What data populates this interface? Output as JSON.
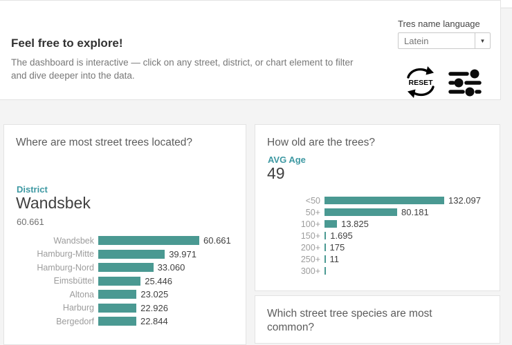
{
  "colors": {
    "bar_teal": "#4a9992",
    "teal_text": "#3d98a2",
    "background": "#f4f4f4",
    "panel_border": "#e3e3e3"
  },
  "header": {
    "title": "Feel free to explore!",
    "subtitle_line1": "The dashboard is interactive — click on any street, district, or chart element to filter",
    "subtitle_line2": "and dive deeper into the data.",
    "language_label": "Tres name language",
    "language_value": "Latein",
    "reset_label": "RESET"
  },
  "district_panel": {
    "title": "Where are most street trees located?",
    "kpi_label": "District",
    "kpi_value": "Wandsbek",
    "kpi_subvalue": "60.661"
  },
  "age_panel": {
    "title": "How old are the trees?",
    "kpi_label": "AVG Age",
    "kpi_value": "49"
  },
  "species_panel": {
    "title": "Which street tree species are most common?"
  },
  "chart_data": [
    {
      "type": "bar",
      "orientation": "horizontal",
      "title": "Where are most street trees located?",
      "categories": [
        "Wandsbek",
        "Hamburg-Mitte",
        "Hamburg-Nord",
        "Eimsbüttel",
        "Altona",
        "Harburg",
        "Bergedorf"
      ],
      "values": [
        60661,
        39971,
        33060,
        25446,
        23025,
        22926,
        22844
      ],
      "value_labels": [
        "60.661",
        "39.971",
        "33.060",
        "25.446",
        "23.025",
        "22.926",
        "22.844"
      ],
      "bar_color": "#4a9992",
      "xlim": [
        0,
        60661
      ],
      "grid": false,
      "legend": false
    },
    {
      "type": "bar",
      "orientation": "horizontal",
      "title": "How old are the trees?",
      "categories": [
        "<50",
        "50+",
        "100+",
        "150+",
        "200+",
        "250+",
        "300+"
      ],
      "values": [
        132097,
        80181,
        13825,
        1695,
        175,
        11,
        null
      ],
      "value_labels": [
        "132.097",
        "80.181",
        "13.825",
        "1.695",
        "175",
        "11",
        ""
      ],
      "bar_color": "#4a9992",
      "xlim": [
        0,
        132097
      ],
      "grid": false,
      "legend": false
    }
  ]
}
